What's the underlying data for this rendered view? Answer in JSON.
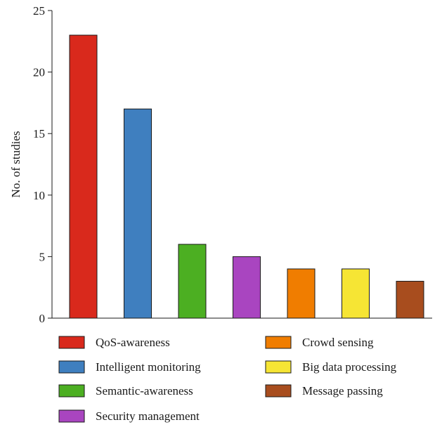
{
  "chart_data": {
    "type": "bar",
    "title": "",
    "xlabel": "",
    "ylabel": "No. of studies",
    "ylim": [
      0,
      25
    ],
    "yticks": [
      0,
      5,
      10,
      15,
      20,
      25
    ],
    "grid": false,
    "legend_position": "bottom",
    "categories": [
      "QoS-awareness",
      "Intelligent monitoring",
      "Semantic-awareness",
      "Security management",
      "Crowd sensing",
      "Big data processing",
      "Message passing"
    ],
    "values": [
      23,
      17,
      6,
      5,
      4,
      4,
      3
    ],
    "colors": [
      "#d9291c",
      "#3f7fbf",
      "#4caf22",
      "#a945c0",
      "#f07d00",
      "#f6e534",
      "#a84d1e"
    ]
  }
}
